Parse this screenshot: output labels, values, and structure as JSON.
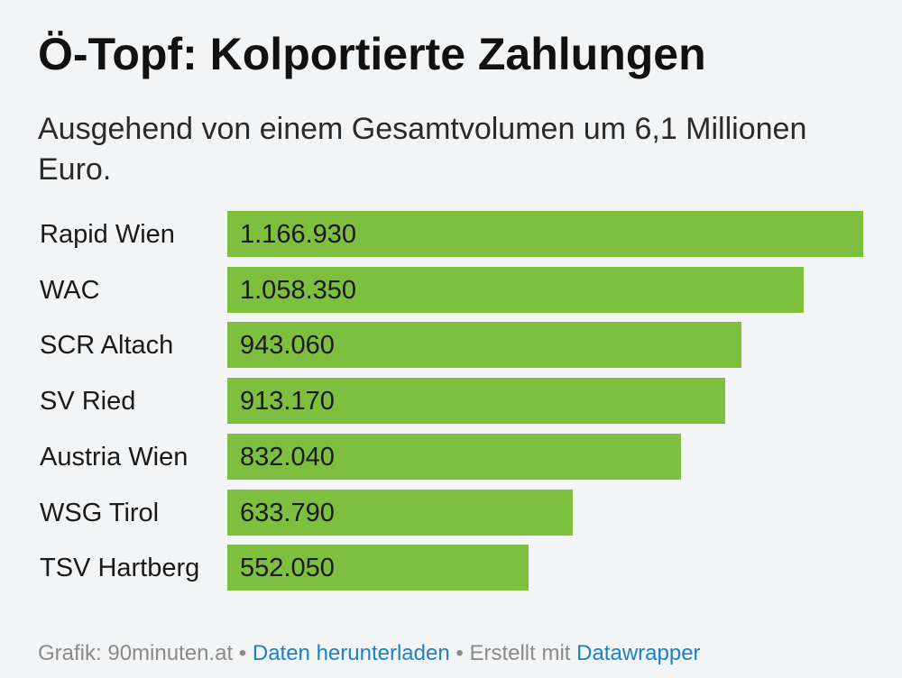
{
  "chart_data": {
    "type": "bar",
    "orientation": "horizontal",
    "title": "Ö-Topf: Kolportierte Zahlungen",
    "subtitle": "Ausgehend von einem Gesamtvolumen um 6,1 Millionen Euro.",
    "categories": [
      "Rapid Wien",
      "WAC",
      "SCR Altach",
      "SV Ried",
      "Austria Wien",
      "WSG Tirol",
      "TSV Hartberg"
    ],
    "values": [
      1166930,
      1058350,
      943060,
      913170,
      832040,
      633790,
      552050
    ],
    "value_labels": [
      "1.166.930",
      "1.058.350",
      "943.060",
      "913.170",
      "832.040",
      "633.790",
      "552.050"
    ],
    "xlim": [
      0,
      1166930
    ],
    "xlabel": "",
    "ylabel": "",
    "grid": false,
    "bar_color": "#7fbf40"
  },
  "footer": {
    "source": "Grafik: 90minuten.at",
    "separator1": " • ",
    "download_label": "Daten herunterladen",
    "separator2": " • ",
    "created_with": "Erstellt mit ",
    "tool_label": "Datawrapper"
  },
  "colors": {
    "background": "#f3f4f5",
    "link": "#1d81c4",
    "muted_text": "#8a8a8a"
  }
}
